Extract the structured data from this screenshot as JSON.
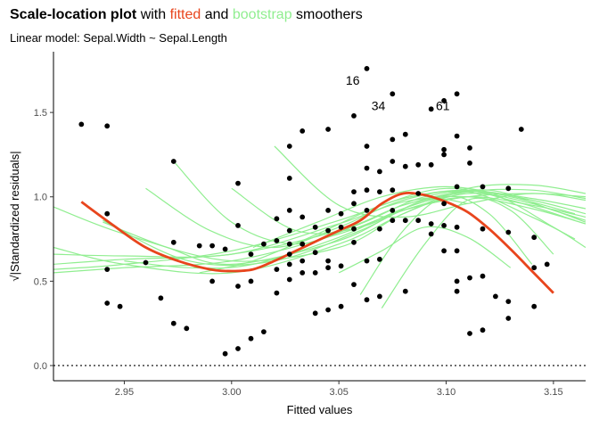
{
  "header": {
    "title_bold": "Scale-location plot",
    "title_with": " with ",
    "title_fitted": "fitted",
    "title_and": " and ",
    "title_bootstrap": "bootstrap",
    "title_end": " smoothers",
    "subtitle": "Linear model: Sepal.Width ~ Sepal.Length"
  },
  "colors": {
    "fitted": "#e8451d",
    "bootstrap": "#90ee90",
    "points": "#000000",
    "refline": "#000000"
  },
  "chart_data": {
    "type": "scatter",
    "xlabel": "Fitted values",
    "ylabel": "√|Standardized residuals|",
    "xlim": [
      2.917,
      3.165
    ],
    "ylim": [
      -0.09,
      1.86
    ],
    "xticks": [
      2.95,
      3.0,
      3.05,
      3.1,
      3.15
    ],
    "xtick_labels": [
      "2.95",
      "3.00",
      "3.05",
      "3.10",
      "3.15"
    ],
    "yticks": [
      0.0,
      0.5,
      1.0,
      1.5
    ],
    "ytick_labels": [
      "0.0",
      "0.5",
      "1.0",
      "1.5"
    ],
    "reference_line_y": 0,
    "grid": false,
    "points": [
      [
        2.93,
        1.43
      ],
      [
        2.942,
        1.42
      ],
      [
        2.942,
        0.9
      ],
      [
        2.942,
        0.57
      ],
      [
        2.942,
        0.37
      ],
      [
        2.948,
        0.35
      ],
      [
        2.96,
        0.61
      ],
      [
        2.967,
        0.4
      ],
      [
        2.973,
        1.21
      ],
      [
        2.973,
        0.73
      ],
      [
        2.973,
        0.25
      ],
      [
        2.979,
        0.22
      ],
      [
        2.985,
        0.71
      ],
      [
        2.991,
        0.71
      ],
      [
        2.991,
        0.5
      ],
      [
        2.997,
        0.07
      ],
      [
        2.997,
        0.69
      ],
      [
        3.003,
        1.08
      ],
      [
        3.003,
        0.83
      ],
      [
        3.003,
        0.47
      ],
      [
        3.003,
        0.1
      ],
      [
        3.009,
        0.66
      ],
      [
        3.009,
        0.5
      ],
      [
        3.009,
        0.16
      ],
      [
        3.015,
        0.72
      ],
      [
        3.015,
        0.2
      ],
      [
        3.021,
        0.87
      ],
      [
        3.021,
        0.74
      ],
      [
        3.021,
        0.57
      ],
      [
        3.021,
        0.43
      ],
      [
        3.027,
        1.3
      ],
      [
        3.027,
        1.11
      ],
      [
        3.027,
        0.92
      ],
      [
        3.027,
        0.8
      ],
      [
        3.027,
        0.72
      ],
      [
        3.027,
        0.66
      ],
      [
        3.027,
        0.6
      ],
      [
        3.027,
        0.51
      ],
      [
        3.033,
        1.39
      ],
      [
        3.033,
        0.88
      ],
      [
        3.033,
        0.72
      ],
      [
        3.033,
        0.62
      ],
      [
        3.033,
        0.55
      ],
      [
        3.039,
        0.82
      ],
      [
        3.039,
        0.67
      ],
      [
        3.039,
        0.55
      ],
      [
        3.039,
        0.31
      ],
      [
        3.045,
        1.4
      ],
      [
        3.045,
        0.92
      ],
      [
        3.045,
        0.8
      ],
      [
        3.045,
        0.62
      ],
      [
        3.045,
        0.58
      ],
      [
        3.045,
        0.33
      ],
      [
        3.051,
        0.9
      ],
      [
        3.051,
        0.82
      ],
      [
        3.051,
        0.59
      ],
      [
        3.051,
        0.35
      ],
      [
        3.057,
        1.48
      ],
      [
        3.057,
        1.03
      ],
      [
        3.057,
        0.96
      ],
      [
        3.057,
        0.81
      ],
      [
        3.057,
        0.73
      ],
      [
        3.057,
        0.48
      ],
      [
        3.063,
        1.76
      ],
      [
        3.063,
        1.3
      ],
      [
        3.063,
        1.17
      ],
      [
        3.063,
        1.04
      ],
      [
        3.063,
        0.92
      ],
      [
        3.063,
        0.62
      ],
      [
        3.063,
        0.39
      ],
      [
        3.069,
        1.15
      ],
      [
        3.069,
        1.03
      ],
      [
        3.069,
        0.81
      ],
      [
        3.069,
        0.63
      ],
      [
        3.069,
        0.41
      ],
      [
        3.075,
        1.61
      ],
      [
        3.075,
        1.34
      ],
      [
        3.075,
        1.21
      ],
      [
        3.075,
        1.04
      ],
      [
        3.075,
        0.92
      ],
      [
        3.075,
        0.86
      ],
      [
        3.081,
        1.37
      ],
      [
        3.081,
        1.18
      ],
      [
        3.081,
        0.86
      ],
      [
        3.081,
        0.44
      ],
      [
        3.087,
        1.19
      ],
      [
        3.087,
        1.02
      ],
      [
        3.087,
        0.86
      ],
      [
        3.093,
        1.52
      ],
      [
        3.093,
        1.19
      ],
      [
        3.093,
        0.84
      ],
      [
        3.093,
        0.78
      ],
      [
        3.099,
        1.57
      ],
      [
        3.099,
        1.28
      ],
      [
        3.099,
        1.25
      ],
      [
        3.099,
        0.96
      ],
      [
        3.099,
        0.83
      ],
      [
        3.099,
        0.68
      ],
      [
        3.105,
        1.61
      ],
      [
        3.105,
        1.36
      ],
      [
        3.105,
        1.06
      ],
      [
        3.105,
        0.82
      ],
      [
        3.105,
        0.68
      ],
      [
        3.105,
        0.5
      ],
      [
        3.105,
        0.44
      ],
      [
        3.111,
        1.29
      ],
      [
        3.111,
        1.2
      ],
      [
        3.111,
        0.52
      ],
      [
        3.111,
        0.19
      ],
      [
        3.117,
        1.06
      ],
      [
        3.117,
        0.81
      ],
      [
        3.117,
        0.53
      ],
      [
        3.117,
        0.21
      ],
      [
        3.123,
        0.41
      ],
      [
        3.129,
        1.05
      ],
      [
        3.129,
        0.79
      ],
      [
        3.129,
        0.38
      ],
      [
        3.129,
        0.28
      ],
      [
        3.135,
        1.4
      ],
      [
        3.141,
        0.76
      ],
      [
        3.141,
        0.58
      ],
      [
        3.141,
        0.35
      ],
      [
        3.147,
        0.6
      ]
    ],
    "point_labels": [
      {
        "text": "16",
        "x": 3.063,
        "y": 1.76
      },
      {
        "text": "34",
        "x": 3.075,
        "y": 1.61
      },
      {
        "text": "61",
        "x": 3.105,
        "y": 1.61
      }
    ],
    "fitted_smoother": {
      "name": "fitted",
      "x": [
        2.93,
        2.945,
        2.96,
        2.975,
        2.99,
        3.0,
        3.01,
        3.02,
        3.03,
        3.04,
        3.05,
        3.06,
        3.07,
        3.08,
        3.09,
        3.1,
        3.11,
        3.12,
        3.13,
        3.14,
        3.15
      ],
      "y": [
        0.97,
        0.83,
        0.7,
        0.62,
        0.57,
        0.56,
        0.57,
        0.62,
        0.68,
        0.74,
        0.8,
        0.86,
        0.96,
        1.02,
        1.01,
        0.97,
        0.91,
        0.81,
        0.69,
        0.56,
        0.43
      ]
    },
    "bootstrap_smoothers": [
      {
        "x": [
          2.917,
          2.95,
          3.0,
          3.05,
          3.08,
          3.11,
          3.14,
          3.165
        ],
        "y": [
          0.6,
          0.63,
          0.66,
          0.8,
          0.95,
          1.03,
          0.99,
          0.93
        ]
      },
      {
        "x": [
          2.917,
          2.95,
          3.0,
          3.05,
          3.08,
          3.11,
          3.14,
          3.165
        ],
        "y": [
          0.55,
          0.58,
          0.62,
          0.78,
          0.92,
          1.0,
          1.02,
          1.0
        ]
      },
      {
        "x": [
          2.917,
          2.95,
          3.0,
          3.05,
          3.08,
          3.11,
          3.14,
          3.165
        ],
        "y": [
          0.94,
          0.78,
          0.62,
          0.7,
          0.9,
          1.02,
          0.96,
          0.85
        ]
      },
      {
        "x": [
          2.917,
          2.95,
          3.0,
          3.05,
          3.08,
          3.11,
          3.14,
          3.165
        ],
        "y": [
          0.66,
          0.65,
          0.66,
          0.84,
          0.97,
          1.0,
          0.93,
          0.84
        ]
      },
      {
        "x": [
          2.917,
          2.95,
          3.0,
          3.05,
          3.08,
          3.11,
          3.14,
          3.165
        ],
        "y": [
          0.7,
          0.6,
          0.55,
          0.72,
          0.9,
          1.05,
          1.07,
          1.02
        ]
      },
      {
        "x": [
          2.917,
          2.95,
          3.0,
          3.05,
          3.08,
          3.11,
          3.14,
          3.165
        ],
        "y": [
          0.57,
          0.6,
          0.68,
          0.86,
          0.99,
          1.04,
          0.98,
          0.9
        ]
      },
      {
        "x": [
          2.94,
          2.97,
          3.0,
          3.05,
          3.08,
          3.11,
          3.14,
          3.165
        ],
        "y": [
          0.85,
          0.7,
          0.6,
          0.74,
          0.92,
          1.0,
          0.95,
          0.88
        ]
      },
      {
        "x": [
          2.95,
          2.98,
          3.01,
          3.05,
          3.08,
          3.11,
          3.14,
          3.165
        ],
        "y": [
          0.62,
          0.58,
          0.6,
          0.76,
          0.93,
          1.03,
          1.04,
          0.99
        ]
      },
      {
        "x": [
          2.96,
          2.99,
          3.02,
          3.05,
          3.08,
          3.11,
          3.14,
          3.16
        ],
        "y": [
          1.05,
          0.8,
          0.7,
          0.82,
          0.98,
          1.03,
          0.88,
          0.75
        ]
      },
      {
        "x": [
          2.973,
          3.0,
          3.03,
          3.06,
          3.09,
          3.12,
          3.15,
          3.165
        ],
        "y": [
          1.21,
          0.85,
          0.72,
          0.84,
          1.0,
          1.02,
          0.82,
          0.7
        ]
      },
      {
        "x": [
          2.985,
          3.01,
          3.04,
          3.07,
          3.1,
          3.13,
          3.16
        ],
        "y": [
          0.55,
          0.62,
          0.78,
          0.95,
          1.05,
          0.98,
          0.86
        ]
      },
      {
        "x": [
          3.0,
          3.03,
          3.06,
          3.09,
          3.12,
          3.15,
          3.165
        ],
        "y": [
          1.05,
          0.8,
          0.82,
          0.98,
          1.04,
          0.92,
          0.86
        ]
      },
      {
        "x": [
          3.01,
          3.04,
          3.07,
          3.1,
          3.13,
          3.16
        ],
        "y": [
          0.7,
          0.85,
          1.0,
          1.06,
          1.0,
          0.9
        ]
      },
      {
        "x": [
          3.02,
          3.05,
          3.08,
          3.11,
          3.14,
          3.165
        ],
        "y": [
          1.3,
          0.95,
          0.88,
          0.96,
          1.02,
          0.98
        ]
      },
      {
        "x": [
          3.05,
          3.07,
          3.09,
          3.11,
          3.13
        ],
        "y": [
          0.55,
          0.68,
          0.82,
          0.76,
          0.58
        ]
      },
      {
        "x": [
          3.06,
          3.08,
          3.1,
          3.12,
          3.14
        ],
        "y": [
          0.42,
          0.8,
          1.0,
          0.9,
          0.6
        ]
      },
      {
        "x": [
          3.07,
          3.09,
          3.11,
          3.13,
          3.15
        ],
        "y": [
          0.34,
          0.72,
          0.98,
          0.92,
          0.66
        ]
      },
      {
        "x": [
          2.94,
          2.98,
          3.02,
          3.06,
          3.09,
          3.11
        ],
        "y": [
          0.86,
          0.62,
          0.62,
          0.8,
          0.98,
          0.96
        ]
      }
    ]
  }
}
